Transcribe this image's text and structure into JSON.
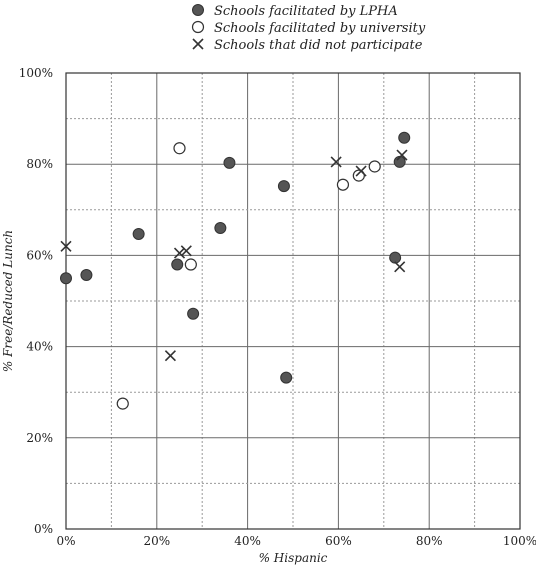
{
  "chart_data": {
    "type": "scatter",
    "xlabel": "% Hispanic",
    "ylabel": "% Free/Reduced Lunch",
    "xlim": [
      0,
      100
    ],
    "ylim": [
      0,
      100
    ],
    "x_ticks": [
      0,
      20,
      40,
      60,
      80,
      100
    ],
    "x_tick_labels": [
      "0%",
      "20%",
      "40%",
      "60%",
      "80%",
      "100%"
    ],
    "y_ticks": [
      0,
      20,
      40,
      60,
      80,
      100
    ],
    "y_tick_labels": [
      "0%",
      "20%",
      "40%",
      "60%",
      "80%",
      "100%"
    ],
    "grid": true,
    "minor_grid": "dotted",
    "legend_position": "top",
    "series": [
      {
        "name": "Schools facilitated by LPHA",
        "marker": "filled-circle",
        "color": "#555555",
        "points": [
          {
            "x": 0,
            "y": 55
          },
          {
            "x": 4.5,
            "y": 55.7
          },
          {
            "x": 16,
            "y": 64.7
          },
          {
            "x": 24.5,
            "y": 58
          },
          {
            "x": 28,
            "y": 47.2
          },
          {
            "x": 34,
            "y": 66
          },
          {
            "x": 36,
            "y": 80.3
          },
          {
            "x": 48,
            "y": 75.2
          },
          {
            "x": 48.5,
            "y": 33.2
          },
          {
            "x": 72.5,
            "y": 59.5
          },
          {
            "x": 73.5,
            "y": 80.5
          },
          {
            "x": 74.5,
            "y": 85.8
          }
        ]
      },
      {
        "name": "Schools facilitated by university",
        "marker": "open-circle",
        "color": "#333333",
        "points": [
          {
            "x": 12.5,
            "y": 27.5
          },
          {
            "x": 25,
            "y": 83.5
          },
          {
            "x": 27.5,
            "y": 58
          },
          {
            "x": 61,
            "y": 75.5
          },
          {
            "x": 64.5,
            "y": 77.5
          },
          {
            "x": 68,
            "y": 79.5
          }
        ]
      },
      {
        "name": "Schools that did not participate",
        "marker": "x",
        "color": "#333333",
        "points": [
          {
            "x": 0,
            "y": 62
          },
          {
            "x": 23,
            "y": 38
          },
          {
            "x": 25,
            "y": 60.5
          },
          {
            "x": 26.5,
            "y": 61
          },
          {
            "x": 59.5,
            "y": 80.5
          },
          {
            "x": 65,
            "y": 78.5
          },
          {
            "x": 73.5,
            "y": 57.5
          },
          {
            "x": 74,
            "y": 82
          }
        ]
      }
    ]
  }
}
